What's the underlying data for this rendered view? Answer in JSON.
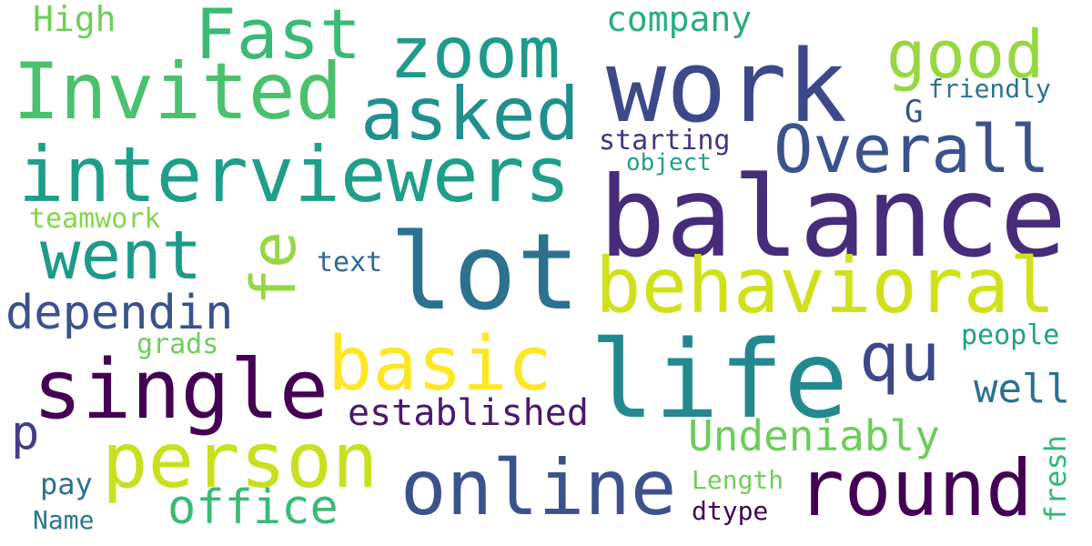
{
  "words": {
    "balance": {
      "text": "balance",
      "color": "#472c7a"
    },
    "life": {
      "text": "life",
      "color": "#23898e"
    },
    "work": {
      "text": "work",
      "color": "#3e4989"
    },
    "lot": {
      "text": "lot",
      "color": "#2c728e"
    },
    "interviewers": {
      "text": "interviewers",
      "color": "#1f9e89"
    },
    "behavioral": {
      "text": "behavioral",
      "color": "#d0e11c"
    },
    "person": {
      "text": "person",
      "color": "#c8e020"
    },
    "online": {
      "text": "online",
      "color": "#3b528b"
    },
    "single": {
      "text": "single",
      "color": "#440154"
    },
    "invited": {
      "text": "Invited",
      "color": "#4ac16d"
    },
    "round": {
      "text": "round",
      "color": "#440154"
    },
    "asked": {
      "text": "asked",
      "color": "#21908d"
    },
    "zoom": {
      "text": "zoom",
      "color": "#1f9a8a"
    },
    "fast": {
      "text": "Fast",
      "color": "#3aba76"
    },
    "basic": {
      "text": "basic",
      "color": "#fde725"
    },
    "overall": {
      "text": "Overall",
      "color": "#3b528b"
    },
    "went": {
      "text": "went",
      "color": "#1f9a8a"
    },
    "good": {
      "text": "good",
      "color": "#95d840"
    },
    "qu": {
      "text": "qu",
      "color": "#3e4989"
    },
    "fe": {
      "text": "fe",
      "color": "#95d840"
    },
    "dependin": {
      "text": "dependin",
      "color": "#3b528b"
    },
    "office": {
      "text": "office",
      "color": "#3aba76"
    },
    "undeniably": {
      "text": "Undeniably",
      "color": "#6ccd5a"
    },
    "established": {
      "text": "established",
      "color": "#481a6c"
    },
    "well": {
      "text": "well",
      "color": "#2d718e"
    },
    "p": {
      "text": "p",
      "color": "#433e85"
    },
    "company": {
      "text": "company",
      "color": "#27ad81"
    },
    "high": {
      "text": "High",
      "color": "#6ece58"
    },
    "friendly": {
      "text": "friendly",
      "color": "#2c728e"
    },
    "starting": {
      "text": "starting",
      "color": "#46327e"
    },
    "g": {
      "text": "G",
      "color": "#3b528b"
    },
    "object": {
      "text": "object",
      "color": "#1fa088"
    },
    "teamwork": {
      "text": "teamwork",
      "color": "#86d549"
    },
    "text": {
      "text": "text",
      "color": "#31688e"
    },
    "grads": {
      "text": "grads",
      "color": "#6ece58"
    },
    "people": {
      "text": "people",
      "color": "#1fa088"
    },
    "pay": {
      "text": "pay",
      "color": "#2c728e"
    },
    "name": {
      "text": "Name",
      "color": "#2a788e"
    },
    "length": {
      "text": "Length",
      "color": "#6ece58"
    },
    "dtype": {
      "text": "dtype",
      "color": "#440154"
    },
    "fresh": {
      "text": "fresh",
      "color": "#35b779"
    }
  }
}
